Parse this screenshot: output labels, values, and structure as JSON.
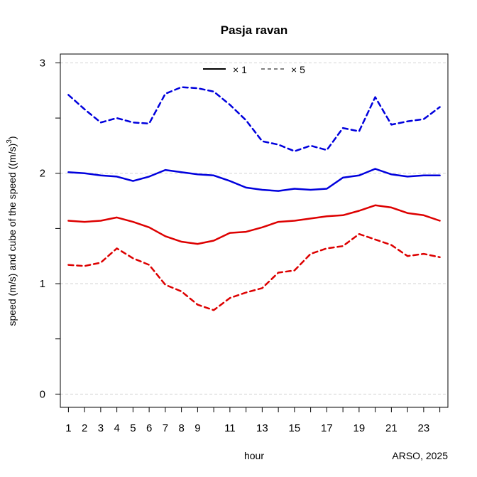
{
  "chart_data": {
    "type": "line",
    "title": "Pasja ravan",
    "xlabel": "hour",
    "ylabel": "speed (m/s) and cube of the speed ((m/s)",
    "ylabel_superscript": "3",
    "ylabel_suffix": ")",
    "credit": "ARSO, 2025",
    "xlim": [
      0.5,
      24.5
    ],
    "ylim": [
      -0.12,
      3.08
    ],
    "x_ticks": [
      1,
      2,
      3,
      4,
      5,
      6,
      7,
      8,
      9,
      10,
      11,
      12,
      13,
      14,
      15,
      16,
      17,
      18,
      19,
      20,
      21,
      22,
      23,
      24
    ],
    "x_tick_labels": [
      "1",
      "2",
      "3",
      "4",
      "5",
      "6",
      "7",
      "8",
      "9",
      "",
      "11",
      "",
      "13",
      "",
      "15",
      "",
      "17",
      "",
      "19",
      "",
      "21",
      "",
      "23",
      ""
    ],
    "y_ticks": [
      0,
      0.5,
      1,
      1.5,
      2,
      2.5,
      3
    ],
    "y_tick_labels": [
      "0",
      "",
      "1",
      "",
      "2",
      "",
      "3"
    ],
    "grid": "horizontal dashed at 0, 1, 2, 3",
    "legend": {
      "placement": "top",
      "entries": [
        {
          "label": "× 1",
          "style": "solid"
        },
        {
          "label": "× 5",
          "style": "dashed"
        }
      ]
    },
    "x": [
      1,
      2,
      3,
      4,
      5,
      6,
      7,
      8,
      9,
      10,
      11,
      12,
      13,
      14,
      15,
      16,
      17,
      18,
      19,
      20,
      21,
      22,
      23,
      24
    ],
    "series": [
      {
        "color": "#0000dd",
        "style": "solid",
        "values": [
          2.01,
          2.0,
          1.98,
          1.97,
          1.93,
          1.97,
          2.03,
          2.01,
          1.99,
          1.98,
          1.93,
          1.87,
          1.85,
          1.84,
          1.86,
          1.85,
          1.86,
          1.96,
          1.98,
          2.04,
          1.99,
          1.97,
          1.98,
          1.98
        ]
      },
      {
        "color": "#0000dd",
        "style": "dashed",
        "values": [
          2.71,
          2.58,
          2.46,
          2.5,
          2.46,
          2.45,
          2.72,
          2.78,
          2.77,
          2.74,
          2.62,
          2.48,
          2.29,
          2.26,
          2.2,
          2.25,
          2.21,
          2.41,
          2.38,
          2.69,
          2.44,
          2.47,
          2.49,
          2.6
        ]
      },
      {
        "color": "#dd0000",
        "style": "solid",
        "values": [
          1.57,
          1.56,
          1.57,
          1.6,
          1.56,
          1.51,
          1.43,
          1.38,
          1.36,
          1.39,
          1.46,
          1.47,
          1.51,
          1.56,
          1.57,
          1.59,
          1.61,
          1.62,
          1.66,
          1.71,
          1.69,
          1.64,
          1.62,
          1.57
        ]
      },
      {
        "color": "#dd0000",
        "style": "dashed",
        "values": [
          1.17,
          1.16,
          1.19,
          1.32,
          1.23,
          1.17,
          0.99,
          0.93,
          0.81,
          0.76,
          0.87,
          0.92,
          0.96,
          1.1,
          1.12,
          1.27,
          1.32,
          1.34,
          1.45,
          1.4,
          1.35,
          1.25,
          1.27,
          1.24
        ]
      }
    ]
  }
}
